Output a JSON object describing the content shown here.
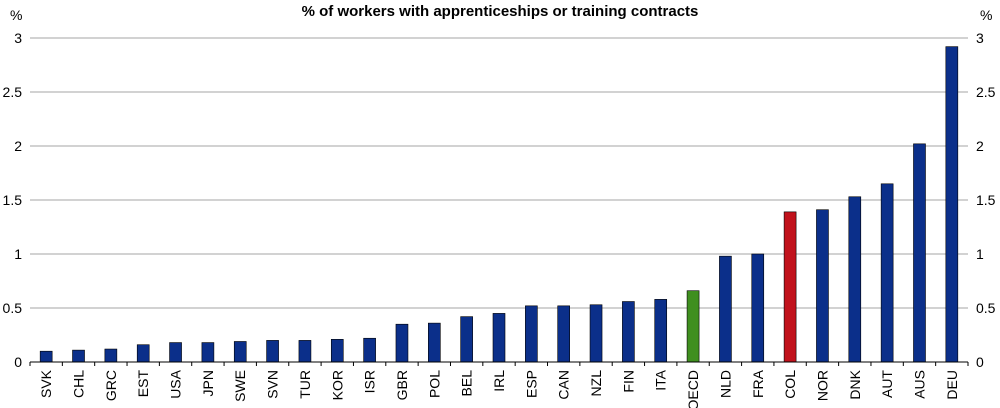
{
  "chart_data": {
    "type": "bar",
    "title": "% of workers with apprenticeships or training contracts",
    "ylabel_left": "%",
    "ylabel_right": "%",
    "ylim": [
      0,
      3
    ],
    "yticks": [
      "0",
      "0.5",
      "1",
      "1.5",
      "2",
      "2.5",
      "3"
    ],
    "grid": true,
    "categories": [
      "SVK",
      "CHL",
      "GRC",
      "EST",
      "USA",
      "JPN",
      "SWE",
      "SVN",
      "TUR",
      "KOR",
      "ISR",
      "GBR",
      "POL",
      "BEL",
      "IRL",
      "ESP",
      "CAN",
      "NZL",
      "FIN",
      "ITA",
      "OECD",
      "NLD",
      "FRA",
      "COL",
      "NOR",
      "DNK",
      "AUT",
      "AUS",
      "DEU"
    ],
    "values": [
      0.1,
      0.11,
      0.12,
      0.16,
      0.18,
      0.18,
      0.19,
      0.2,
      0.2,
      0.21,
      0.22,
      0.35,
      0.36,
      0.42,
      0.45,
      0.52,
      0.52,
      0.53,
      0.56,
      0.58,
      0.66,
      0.98,
      1.0,
      1.39,
      1.41,
      1.53,
      1.65,
      2.02,
      2.92
    ],
    "colors": {
      "default": "#0b2f8a",
      "highlight_oecd": "#3f8f1f",
      "highlight_col": "#c1121c",
      "grid": "#a6a6a6",
      "axis": "#000000"
    },
    "highlights": {
      "OECD": "highlight_oecd",
      "COL": "highlight_col"
    }
  }
}
